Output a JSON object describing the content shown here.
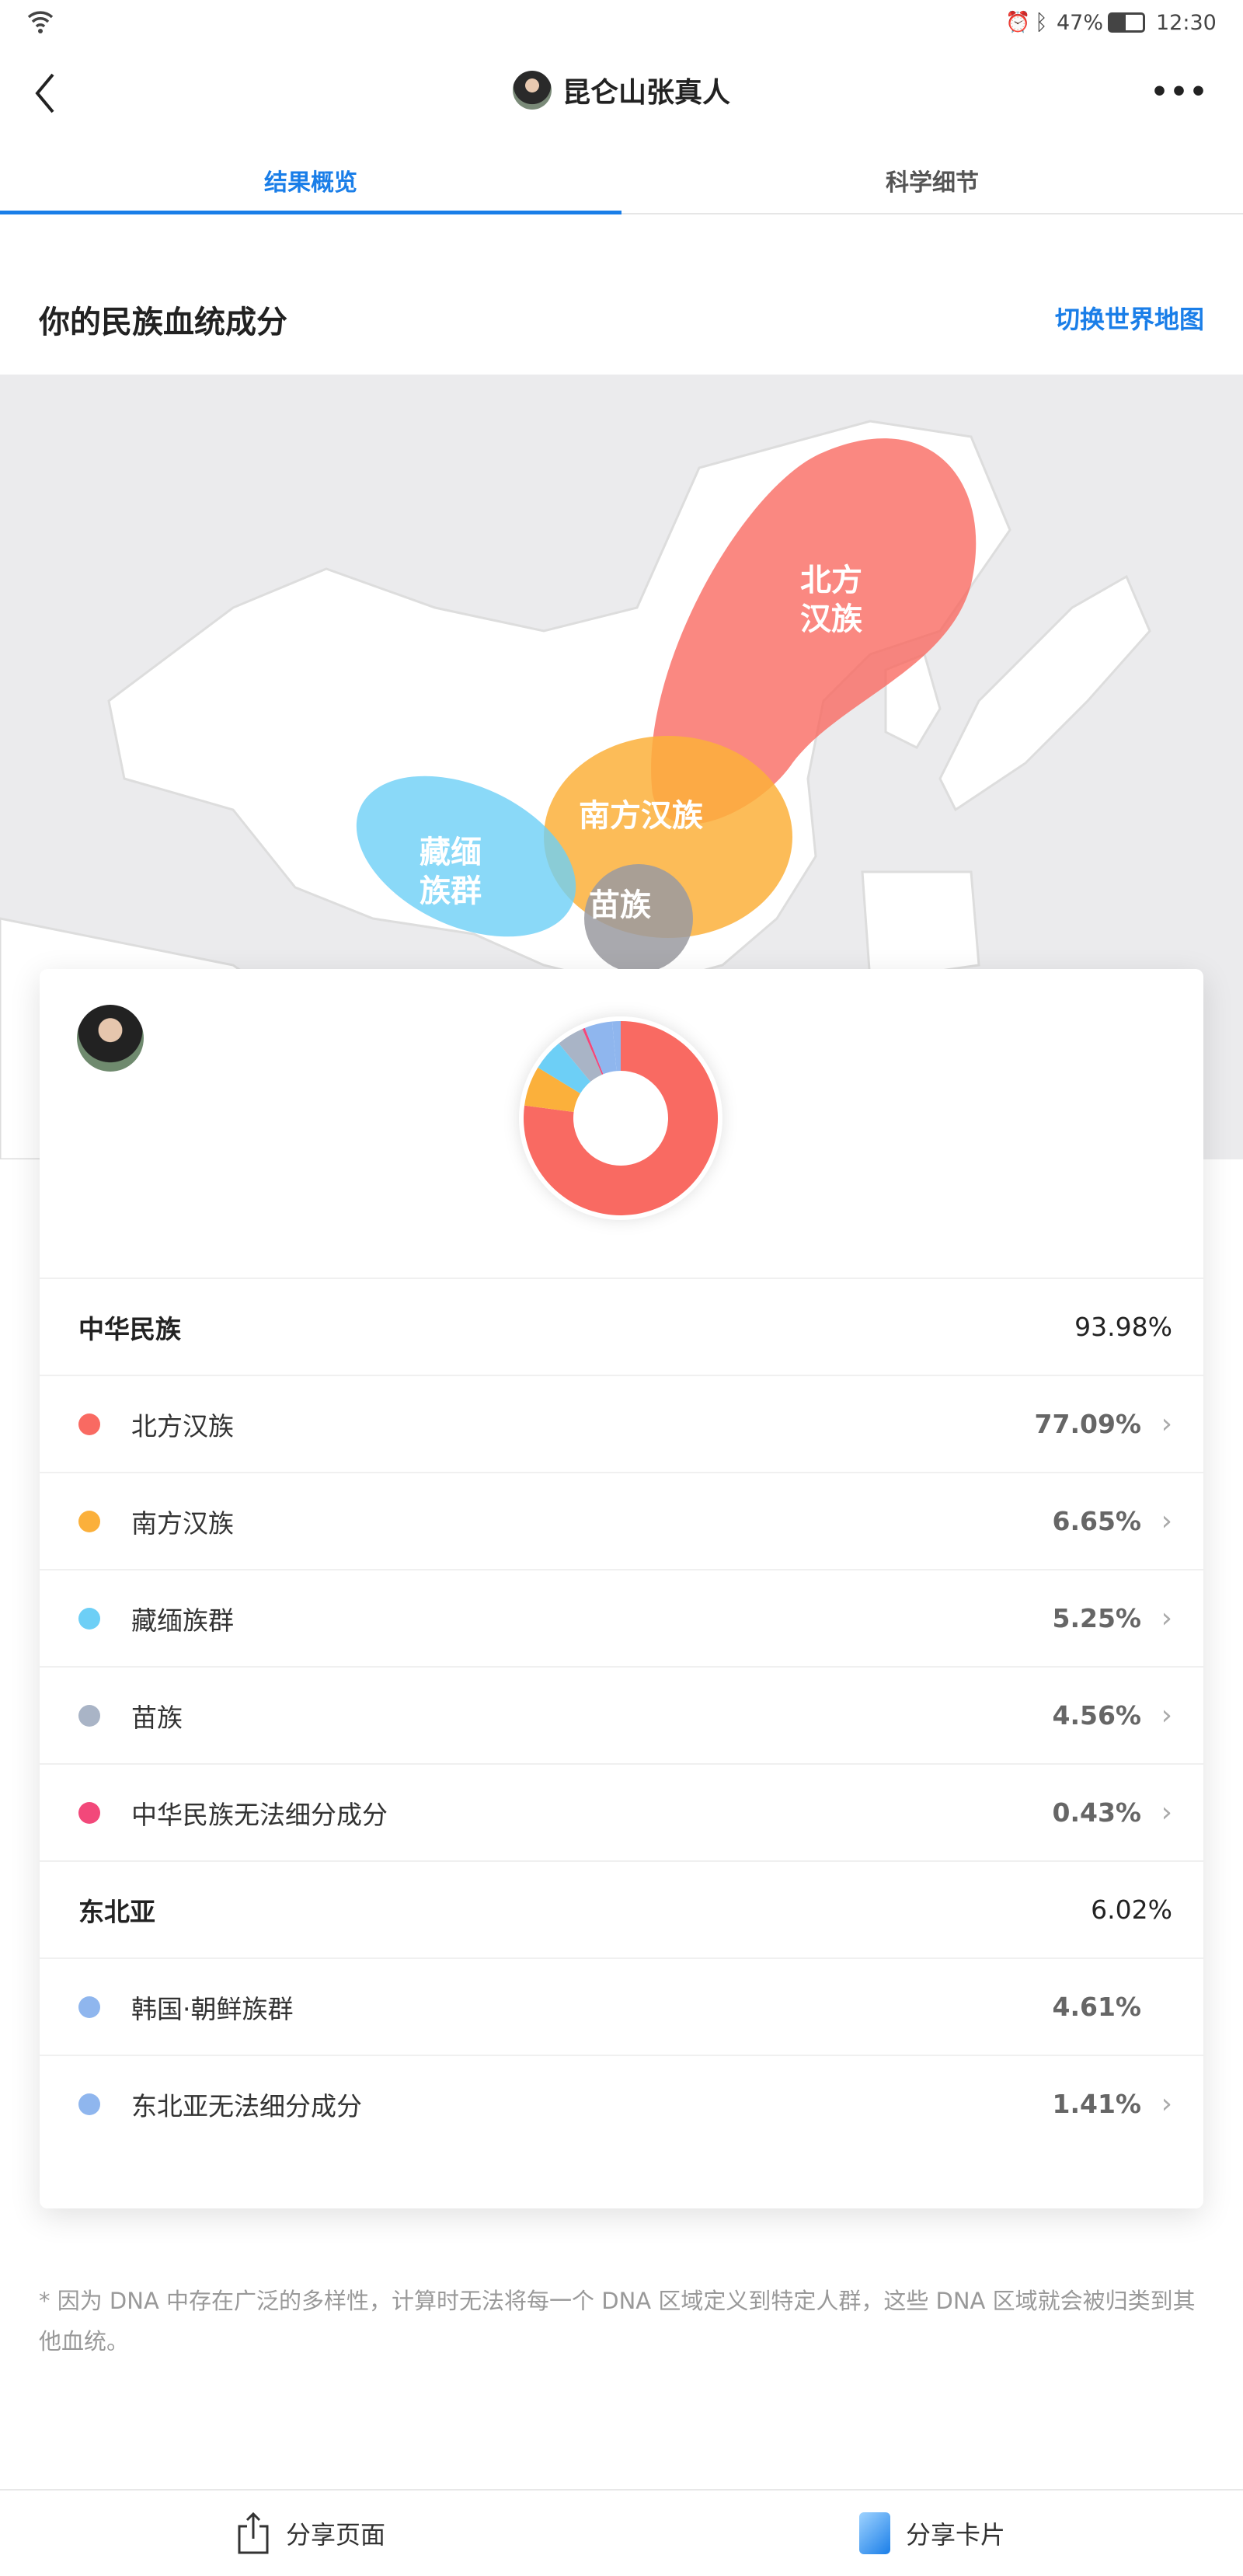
{
  "status": {
    "battery": "47%",
    "time": "12:30"
  },
  "header": {
    "title": "昆仑山张真人"
  },
  "tabs": [
    {
      "label": "结果概览",
      "active": true
    },
    {
      "label": "科学细节",
      "active": false
    }
  ],
  "section": {
    "title": "你的民族血统成分",
    "switch_label": "切换世界地图"
  },
  "map": {
    "labels": [
      "北方汉族",
      "南方汉族",
      "藏缅族群",
      "苗族"
    ]
  },
  "groups": [
    {
      "label": "中华民族",
      "value": "93.98%",
      "items": [
        {
          "label": "北方汉族",
          "value": "77.09%",
          "color": "#f96a62",
          "chevron": true
        },
        {
          "label": "南方汉族",
          "value": "6.65%",
          "color": "#fbb03b",
          "chevron": true
        },
        {
          "label": "藏缅族群",
          "value": "5.25%",
          "color": "#6dcff6",
          "chevron": true
        },
        {
          "label": "苗族",
          "value": "4.56%",
          "color": "#a9b4c6",
          "chevron": true
        },
        {
          "label": "中华民族无法细分成分",
          "value": "0.43%",
          "color": "#f2487a",
          "chevron": true
        }
      ]
    },
    {
      "label": "东北亚",
      "value": "6.02%",
      "items": [
        {
          "label": "韩国·朝鲜族群",
          "value": "4.61%",
          "color": "#8fb6ee",
          "chevron": false
        },
        {
          "label": "东北亚无法细分成分",
          "value": "1.41%",
          "color": "#8fb6ee",
          "chevron": true
        }
      ]
    }
  ],
  "chart_data": {
    "type": "pie",
    "categories": [
      "北方汉族",
      "南方汉族",
      "藏缅族群",
      "苗族",
      "中华民族无法细分成分",
      "韩国·朝鲜族群",
      "东北亚无法细分成分"
    ],
    "values": [
      77.09,
      6.65,
      5.25,
      4.56,
      0.43,
      4.61,
      1.41
    ],
    "colors": [
      "#f96a62",
      "#fbb03b",
      "#6dcff6",
      "#a9b4c6",
      "#f2487a",
      "#8fb6ee",
      "#8fb6ee"
    ]
  },
  "footnote": "* 因为 DNA 中存在广泛的多样性，计算时无法将每一个 DNA 区域定义到特定人群，这些 DNA 区域就会被归类到其他血统。",
  "bottom": {
    "share_page": "分享页面",
    "share_card": "分享卡片"
  }
}
